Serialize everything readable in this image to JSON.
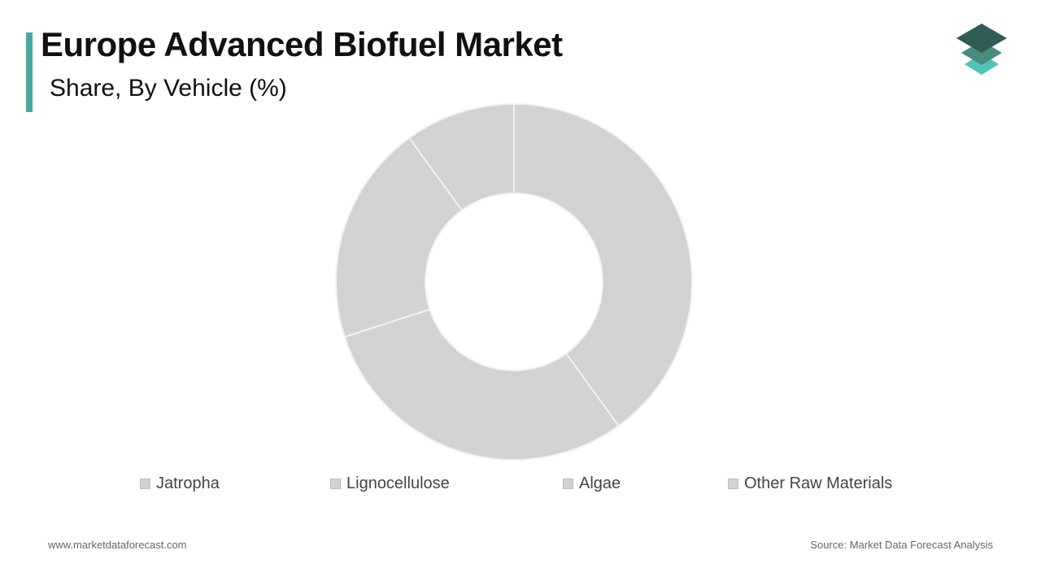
{
  "header": {
    "title": "Europe Advanced Biofuel Market",
    "subtitle": "Share, By Vehicle (%)",
    "accent_color": "#4aa89e"
  },
  "logo": {
    "icon": "layered-diamonds-icon",
    "colors": [
      "#2f5d55",
      "#4a8b80",
      "#4fc4b8"
    ]
  },
  "chart_data": {
    "type": "pie",
    "variant": "donut",
    "categories": [
      "Jatropha",
      "Lignocellulose",
      "Algae",
      "Other Raw Materials"
    ],
    "values": [
      40,
      30,
      20,
      10
    ],
    "unit": "%",
    "slice_color": "#d3d2d3",
    "slice_border_color": "#f2f2f2",
    "legend_position": "bottom",
    "title": "",
    "subtitle": ""
  },
  "footer": {
    "website": "www.marketdataforecast.com",
    "source": "Source: Market Data Forecast Analysis"
  }
}
